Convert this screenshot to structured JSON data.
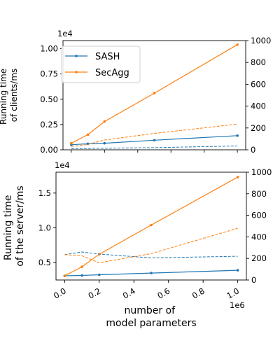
{
  "chart_data": [
    {
      "type": "line",
      "y_multiplier": "1e4",
      "ylabel": [
        "Running time",
        "of clients/ms"
      ],
      "ylim": [
        0,
        1.08
      ],
      "yticks": [
        "0.00",
        "0.25",
        "0.50",
        "0.75",
        "1.00"
      ],
      "y2lim": [
        0,
        1000
      ],
      "y2ticks": [
        "0",
        "200",
        "400",
        "600",
        "800",
        "1000"
      ],
      "xlim": [
        -0.05,
        1.05
      ],
      "legend": {
        "position": "top-left",
        "entries": [
          "SASH",
          "SecAgg"
        ]
      },
      "series": [
        {
          "name": "SASH",
          "axis": "left",
          "style": "solid-marker",
          "color": "#1f77b4",
          "x": [
            0,
            0.1,
            0.2,
            0.5,
            1.0
          ],
          "y": [
            0.05,
            0.06,
            0.065,
            0.095,
            0.14
          ]
        },
        {
          "name": "SecAgg",
          "axis": "left",
          "style": "solid-marker",
          "color": "#ff7f0e",
          "x": [
            0,
            0.1,
            0.2,
            0.5,
            1.0
          ],
          "y": [
            0.065,
            0.15,
            0.28,
            0.56,
            1.04
          ]
        },
        {
          "axis": "right",
          "style": "dashed",
          "color": "#1f77b4",
          "x": [
            0,
            0.1,
            0.2,
            0.5,
            1.0
          ],
          "y": [
            10,
            12,
            15,
            20,
            35
          ]
        },
        {
          "axis": "right",
          "style": "dashed",
          "color": "#ff7f0e",
          "x": [
            0,
            0.1,
            0.2,
            0.5,
            1.0
          ],
          "y": [
            30,
            50,
            90,
            150,
            235
          ]
        }
      ]
    },
    {
      "type": "line",
      "y_multiplier": "1e4",
      "ylabel": [
        "Running time",
        "of the server/ms"
      ],
      "ylim": [
        0.25,
        1.8
      ],
      "yticks": [
        "0.5",
        "1.0",
        "1.5"
      ],
      "y2lim": [
        0,
        1000
      ],
      "y2ticks": [
        "0",
        "200",
        "400",
        "600",
        "800",
        "1000"
      ],
      "xlim": [
        -0.05,
        1.05
      ],
      "xticks": [
        "0.0",
        "0.2",
        "0.4",
        "0.6",
        "0.8",
        "1.0"
      ],
      "x_multiplier": "1e6",
      "xlabel": [
        "number of",
        "model parameters"
      ],
      "series": [
        {
          "name": "SASH",
          "axis": "left",
          "style": "solid-marker",
          "color": "#1f77b4",
          "x": [
            0,
            0.1,
            0.2,
            0.5,
            1.0
          ],
          "y": [
            0.31,
            0.315,
            0.325,
            0.35,
            0.39
          ]
        },
        {
          "name": "SecAgg",
          "axis": "left",
          "style": "solid-marker",
          "color": "#ff7f0e",
          "x": [
            0,
            0.1,
            0.2,
            0.5,
            1.0
          ],
          "y": [
            0.31,
            0.44,
            0.62,
            1.04,
            1.73
          ]
        },
        {
          "axis": "right",
          "style": "dashed",
          "color": "#1f77b4",
          "x": [
            0,
            0.1,
            0.2,
            0.5,
            1.0
          ],
          "y": [
            235,
            260,
            240,
            205,
            220
          ]
        },
        {
          "axis": "right",
          "style": "dashed",
          "color": "#ff7f0e",
          "x": [
            0,
            0.1,
            0.2,
            0.5,
            1.0
          ],
          "y": [
            235,
            225,
            160,
            245,
            480
          ]
        }
      ]
    }
  ]
}
